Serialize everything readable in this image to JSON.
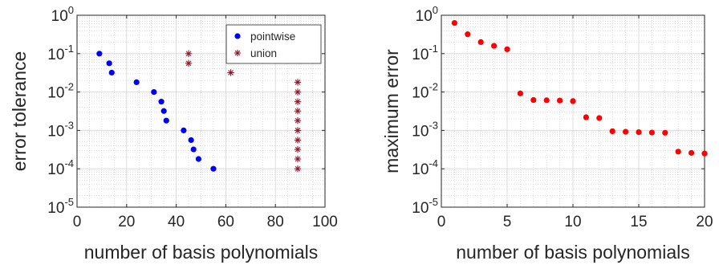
{
  "chart_data": [
    {
      "type": "scatter",
      "xlabel": "number of basis polynomials",
      "ylabel": "error tolerance",
      "xlim": [
        0,
        100
      ],
      "ylim": [
        1e-05,
        1
      ],
      "yscale": "log",
      "grid": "on (major and minor)",
      "legend_position": "top-right",
      "xticks": [
        "0",
        "20",
        "40",
        "60",
        "80",
        "100"
      ],
      "yticks": [
        {
          "base": "10",
          "exp": "-5"
        },
        {
          "base": "10",
          "exp": "-4"
        },
        {
          "base": "10",
          "exp": "-3"
        },
        {
          "base": "10",
          "exp": "-2"
        },
        {
          "base": "10",
          "exp": "-1"
        },
        {
          "base": "10",
          "exp": "0"
        }
      ],
      "series": [
        {
          "name": "pointwise",
          "marker": "dot",
          "color": "#0000ff",
          "points": [
            [
              9,
              0.1
            ],
            [
              13,
              0.056
            ],
            [
              14,
              0.032
            ],
            [
              24,
              0.018
            ],
            [
              31,
              0.01
            ],
            [
              34,
              0.0056
            ],
            [
              35,
              0.0032
            ],
            [
              36,
              0.0018
            ],
            [
              43,
              0.001
            ],
            [
              46,
              0.00056
            ],
            [
              47,
              0.00032
            ],
            [
              49,
              0.00018
            ],
            [
              55,
              0.0001
            ]
          ]
        },
        {
          "name": "union",
          "marker": "asterisk",
          "color": "#8b1a2b",
          "points": [
            [
              45,
              0.1
            ],
            [
              45,
              0.056
            ],
            [
              62,
              0.032
            ],
            [
              89,
              0.018
            ],
            [
              89,
              0.01
            ],
            [
              89,
              0.0056
            ],
            [
              89,
              0.0032
            ],
            [
              89,
              0.0018
            ],
            [
              89,
              0.001
            ],
            [
              89,
              0.00056
            ],
            [
              89,
              0.00032
            ],
            [
              89,
              0.00018
            ],
            [
              89,
              0.0001
            ]
          ]
        }
      ]
    },
    {
      "type": "scatter",
      "xlabel": "number of basis polynomials",
      "ylabel": "maximum error",
      "xlim": [
        0,
        20
      ],
      "ylim": [
        1e-05,
        1
      ],
      "yscale": "log",
      "grid": "on (major and minor)",
      "xticks": [
        "0",
        "5",
        "10",
        "15",
        "20"
      ],
      "yticks": [
        {
          "base": "10",
          "exp": "-5"
        },
        {
          "base": "10",
          "exp": "-4"
        },
        {
          "base": "10",
          "exp": "-3"
        },
        {
          "base": "10",
          "exp": "-2"
        },
        {
          "base": "10",
          "exp": "-1"
        },
        {
          "base": "10",
          "exp": "0"
        }
      ],
      "series": [
        {
          "marker": "dot",
          "color": "#ff0000",
          "points": [
            [
              1,
              0.63
            ],
            [
              2,
              0.32
            ],
            [
              3,
              0.2
            ],
            [
              4,
              0.16
            ],
            [
              5,
              0.13
            ],
            [
              6,
              0.0092
            ],
            [
              7,
              0.0062
            ],
            [
              8,
              0.0061
            ],
            [
              9,
              0.006
            ],
            [
              10,
              0.0058
            ],
            [
              11,
              0.0022
            ],
            [
              12,
              0.0021
            ],
            [
              13,
              0.00095
            ],
            [
              14,
              0.00092
            ],
            [
              15,
              0.0009
            ],
            [
              16,
              0.00088
            ],
            [
              17,
              0.00087
            ],
            [
              18,
              0.00028
            ],
            [
              19,
              0.00026
            ],
            [
              20,
              0.00025
            ]
          ]
        }
      ]
    }
  ]
}
